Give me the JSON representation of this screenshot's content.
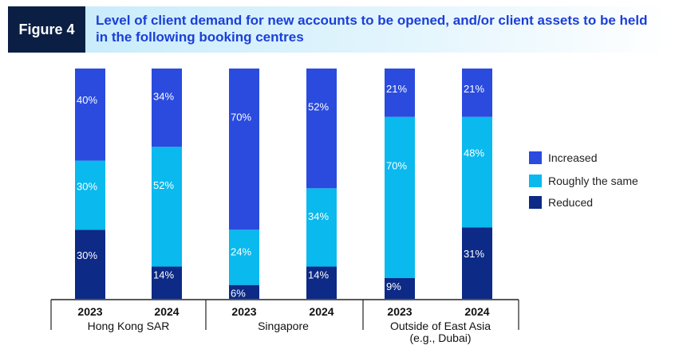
{
  "figure": {
    "label": "Figure 4",
    "title": "Level of client demand for new accounts to be opened, and/or client assets to be held in the following booking centres"
  },
  "colors": {
    "increased": "#2a4bde",
    "roughly_same": "#0ab9ee",
    "reduced": "#0c2a86",
    "header_dark": "#0b1f45",
    "title_blue": "#1b3fd8"
  },
  "chart_data": {
    "type": "bar",
    "stacked": true,
    "title": "Level of client demand for new accounts to be opened, and/or client assets to be held in the following booking centres",
    "xlabel": "",
    "ylabel": "",
    "ylim": [
      0,
      100
    ],
    "groups": [
      "Hong Kong SAR",
      "Singapore",
      "Outside of East Asia\n(e.g., Dubai)"
    ],
    "categories": [
      "2023",
      "2024",
      "2023",
      "2024",
      "2023",
      "2024"
    ],
    "series": [
      {
        "name": "Reduced",
        "values": [
          30,
          14,
          6,
          14,
          9,
          31
        ]
      },
      {
        "name": "Roughly the same",
        "values": [
          30,
          52,
          24,
          34,
          70,
          48
        ]
      },
      {
        "name": "Increased",
        "values": [
          40,
          34,
          70,
          52,
          21,
          21
        ]
      }
    ],
    "value_labels": {
      "Reduced": [
        "30%",
        "14%",
        "6%",
        "14%",
        "9%",
        "31%"
      ],
      "Roughly the same": [
        "30%",
        "52%",
        "24%",
        "34%",
        "70%",
        "48%"
      ],
      "Increased": [
        "40%",
        "34%",
        "70%",
        "52%",
        "21%",
        "21%"
      ]
    },
    "legend": {
      "position": "right",
      "entries": [
        "Increased",
        "Roughly the same",
        "Reduced"
      ]
    },
    "grid": false
  }
}
